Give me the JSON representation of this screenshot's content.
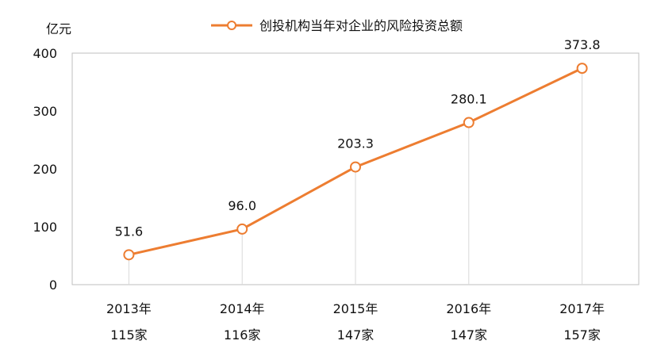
{
  "chart_data": {
    "type": "line",
    "title": "",
    "xlabel": "",
    "ylabel": "亿元",
    "ylim": [
      0,
      400
    ],
    "yticks": [
      0,
      100,
      200,
      300,
      400
    ],
    "categories": [
      "2013年",
      "2014年",
      "2015年",
      "2016年",
      "2017年"
    ],
    "category_sublabels": [
      "115家",
      "116家",
      "147家",
      "147家",
      "157家"
    ],
    "series": [
      {
        "name": "创投机构当年对企业的风险投资总额",
        "values": [
          51.6,
          96.0,
          203.3,
          280.1,
          373.8
        ],
        "data_labels": [
          "51.6",
          "96.0",
          "203.3",
          "280.1",
          "373.8"
        ]
      }
    ],
    "legend_position": "top",
    "grid": false,
    "colors": {
      "line": "#ED7D31",
      "marker_fill": "#ffffff",
      "drop_line": "#d9d9d9",
      "axis": "#bfbfbf"
    }
  }
}
